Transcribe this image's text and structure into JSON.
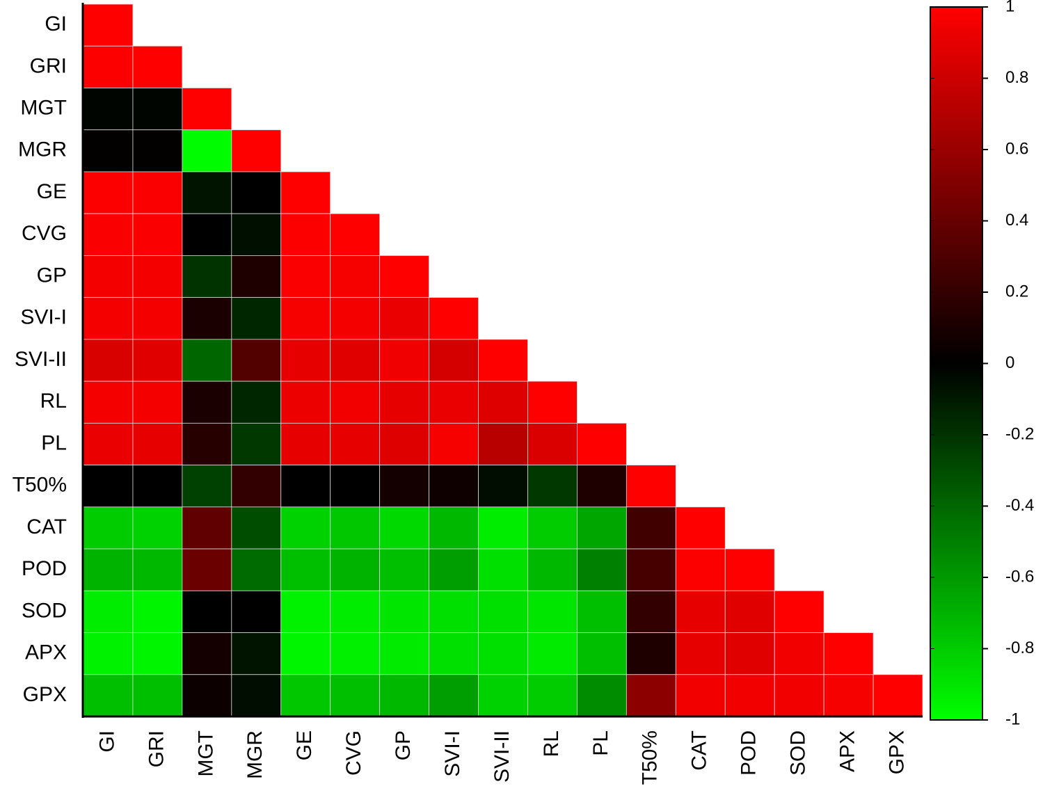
{
  "chart_data": {
    "type": "heatmap",
    "categories": [
      "GI",
      "GRI",
      "MGT",
      "MGR",
      "GE",
      "CVG",
      "GP",
      "SVI-I",
      "SVI-II",
      "RL",
      "PL",
      "T50%",
      "CAT",
      "POD",
      "SOD",
      "APX",
      "GPX"
    ],
    "values": [
      [
        1
      ],
      [
        0.99,
        1
      ],
      [
        -0.02,
        -0.02,
        1
      ],
      [
        0.01,
        0.01,
        -0.99,
        1
      ],
      [
        0.99,
        0.98,
        -0.08,
        0.0,
        1
      ],
      [
        0.98,
        0.98,
        0.0,
        -0.06,
        0.99,
        1
      ],
      [
        0.96,
        0.96,
        -0.2,
        0.12,
        0.98,
        0.97,
        1
      ],
      [
        0.96,
        0.96,
        0.1,
        -0.15,
        0.97,
        0.96,
        0.92,
        1
      ],
      [
        0.85,
        0.88,
        -0.4,
        0.32,
        0.9,
        0.88,
        0.94,
        0.83,
        1
      ],
      [
        0.96,
        0.96,
        0.1,
        -0.15,
        0.93,
        0.95,
        0.9,
        0.92,
        0.87,
        1
      ],
      [
        0.92,
        0.9,
        0.15,
        -0.22,
        0.9,
        0.9,
        0.87,
        0.97,
        0.72,
        0.86,
        1
      ],
      [
        0.0,
        0.0,
        -0.25,
        0.2,
        0.0,
        0.0,
        0.08,
        0.06,
        -0.05,
        -0.22,
        0.12,
        1
      ],
      [
        -0.8,
        -0.82,
        0.38,
        -0.3,
        -0.82,
        -0.78,
        -0.85,
        -0.72,
        -0.93,
        -0.8,
        -0.65,
        0.25,
        1
      ],
      [
        -0.7,
        -0.72,
        0.42,
        -0.42,
        -0.75,
        -0.7,
        -0.75,
        -0.62,
        -0.88,
        -0.72,
        -0.5,
        0.28,
        0.99,
        1
      ],
      [
        -0.93,
        -0.96,
        0.0,
        0.0,
        -0.95,
        -0.93,
        -0.9,
        -0.88,
        -0.88,
        -0.9,
        -0.75,
        0.2,
        0.9,
        0.88,
        1
      ],
      [
        -0.95,
        -0.96,
        0.08,
        -0.08,
        -0.96,
        -0.94,
        -0.92,
        -0.88,
        -0.88,
        -0.92,
        -0.75,
        0.12,
        0.9,
        0.88,
        0.95,
        1
      ],
      [
        -0.75,
        -0.75,
        0.05,
        -0.05,
        -0.78,
        -0.75,
        -0.72,
        -0.62,
        -0.82,
        -0.8,
        -0.55,
        0.55,
        0.95,
        0.95,
        0.95,
        0.97,
        1
      ]
    ],
    "colors": {
      "low": "#00ff00",
      "mid": "#000000",
      "high": "#ff0000"
    },
    "zlim": [
      -1,
      1
    ],
    "zticks": [
      -1,
      -0.8,
      -0.6,
      -0.4,
      -0.2,
      0,
      0.2,
      0.4,
      0.6,
      0.8,
      1
    ]
  }
}
